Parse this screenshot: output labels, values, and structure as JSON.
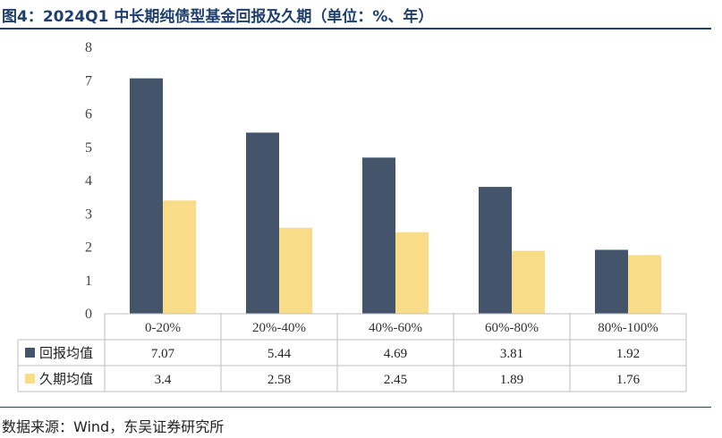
{
  "figure": {
    "title": "图4：2024Q1 中长期纯债型基金回报及久期（单位：%、年）",
    "source": "数据来源：Wind，东吴证券研究所"
  },
  "chart_data": {
    "type": "bar",
    "categories": [
      "0-20%",
      "20%-40%",
      "40%-60%",
      "60%-80%",
      "80%-100%"
    ],
    "series": [
      {
        "name": "回报均值",
        "values": [
          7.07,
          5.44,
          4.69,
          3.81,
          1.92
        ],
        "labels": [
          "7.07",
          "5.44",
          "4.69",
          "3.81",
          "1.92"
        ],
        "color": "#44546a"
      },
      {
        "name": "久期均值",
        "values": [
          3.4,
          2.58,
          2.45,
          1.89,
          1.76
        ],
        "labels": [
          "3.4",
          "2.58",
          "2.45",
          "1.89",
          "1.76"
        ],
        "color": "#f8dc87"
      }
    ],
    "ylim": [
      0,
      8
    ],
    "yticks": [
      "0",
      "1",
      "2",
      "3",
      "4",
      "5",
      "6",
      "7",
      "8"
    ],
    "grid": false,
    "legend": "data-table"
  }
}
